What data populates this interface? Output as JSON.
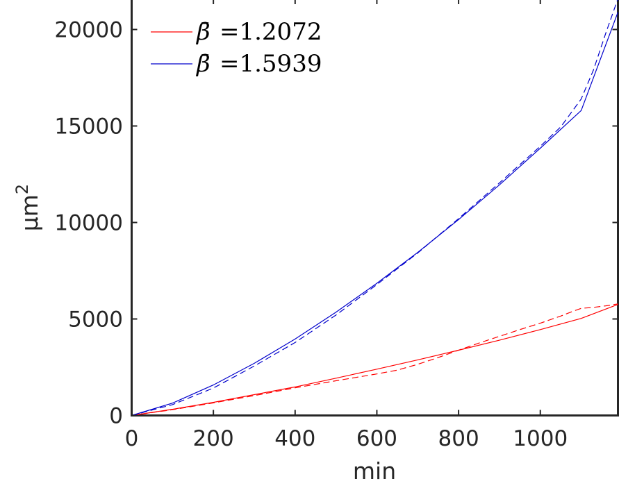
{
  "chart_data": {
    "type": "line",
    "xlabel": "min",
    "ylabel": "μm",
    "ylabel_superscript": "2",
    "xlim": [
      0,
      1190
    ],
    "ylim": [
      0,
      21600
    ],
    "x_ticks": [
      0,
      200,
      400,
      600,
      800,
      1000
    ],
    "x_tick_labels": [
      "0",
      "200",
      "400",
      "600",
      "800",
      "1000"
    ],
    "y_ticks": [
      0,
      5000,
      10000,
      15000,
      20000
    ],
    "y_tick_labels": [
      "0",
      "5000",
      "10000",
      "15000",
      "20000"
    ],
    "grid": false,
    "legend_position": "top-left",
    "series": [
      {
        "name_symbol": "β̄",
        "name_value": "=1.2072",
        "color": "#ff0000",
        "fit": {
          "x": [
            0,
            100,
            200,
            300,
            400,
            500,
            600,
            700,
            800,
            900,
            1000,
            1100,
            1190
          ],
          "y": [
            0,
            320,
            680,
            1080,
            1480,
            1930,
            2400,
            2880,
            3380,
            3900,
            4450,
            5030,
            5750
          ]
        },
        "data": {
          "x": [
            0,
            100,
            200,
            300,
            400,
            500,
            600,
            650,
            700,
            750,
            800,
            850,
            900,
            950,
            1000,
            1050,
            1080,
            1100,
            1130,
            1160,
            1190
          ],
          "y": [
            0,
            300,
            650,
            1030,
            1430,
            1800,
            2150,
            2350,
            2650,
            3000,
            3380,
            3750,
            4100,
            4450,
            4780,
            5150,
            5400,
            5550,
            5600,
            5680,
            5780
          ]
        }
      },
      {
        "name_symbol": "β̄",
        "name_value": "=1.5939",
        "color": "#0000cc",
        "fit": {
          "x": [
            0,
            100,
            200,
            300,
            400,
            500,
            600,
            700,
            800,
            900,
            1000,
            1100,
            1190
          ],
          "y": [
            0,
            640,
            1580,
            2700,
            3960,
            5350,
            6850,
            8450,
            10150,
            11950,
            13850,
            15800,
            20900
          ]
        },
        "data": {
          "x": [
            0,
            100,
            200,
            300,
            400,
            500,
            600,
            700,
            800,
            900,
            1000,
            1050,
            1100,
            1130,
            1160,
            1190
          ],
          "y": [
            0,
            560,
            1420,
            2560,
            3780,
            5200,
            6780,
            8420,
            10200,
            12050,
            13950,
            14950,
            16400,
            17900,
            19800,
            21600
          ]
        }
      }
    ]
  }
}
